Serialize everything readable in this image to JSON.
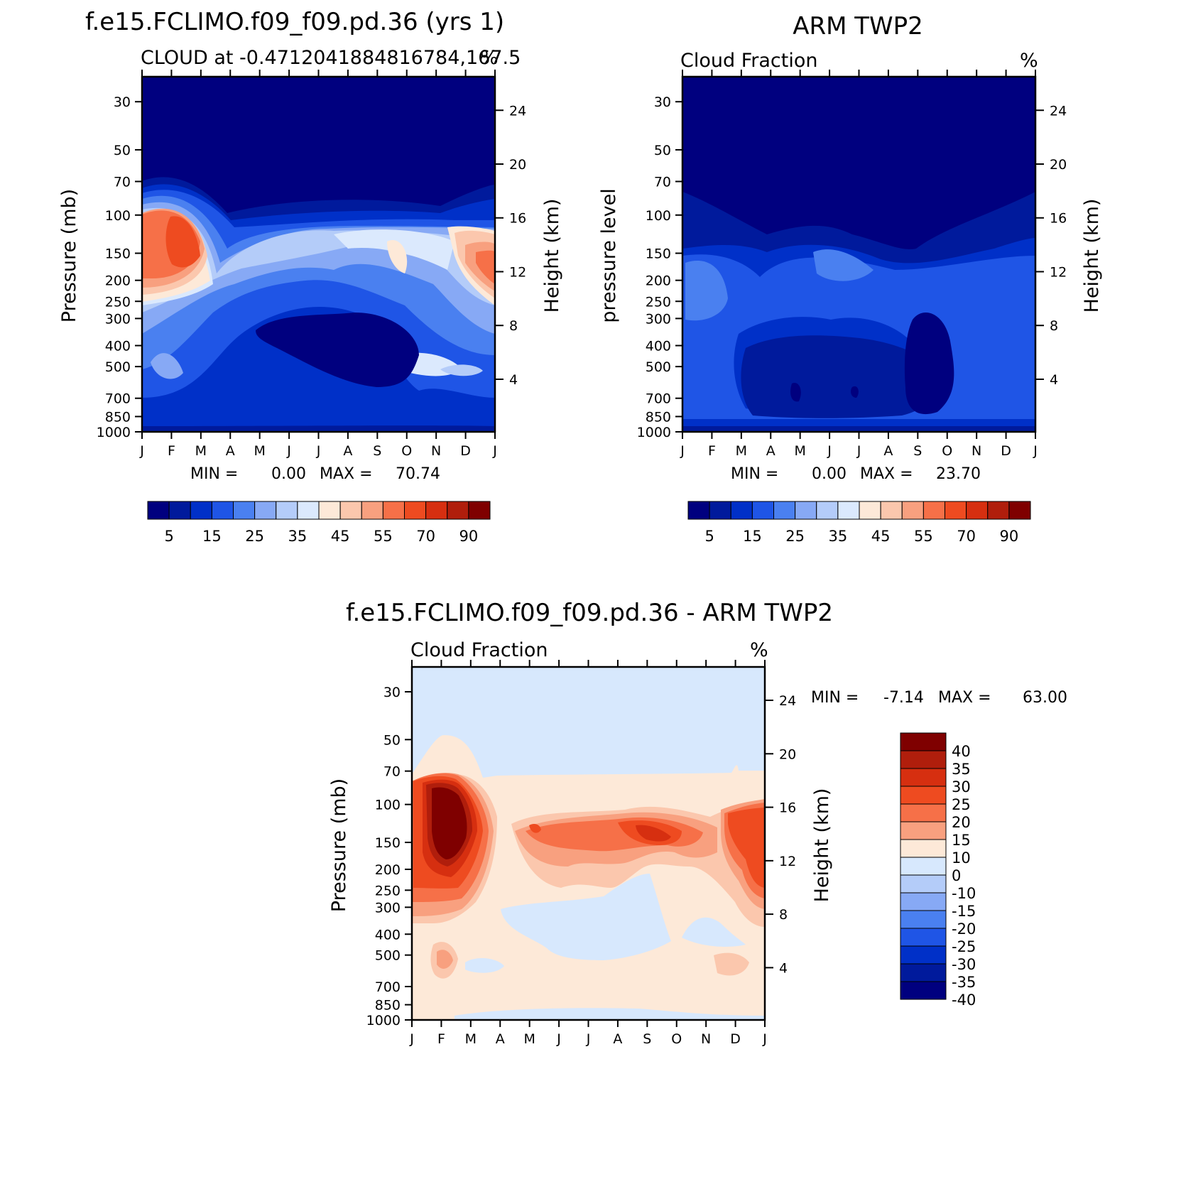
{
  "chart_data": [
    {
      "type": "contour",
      "title": "f.e15.FCLIMO.f09_f09.pd.36 (yrs 1)",
      "subtitle_left": "CLOUD at -0.4712041884816784,167.5",
      "units": "%",
      "xlabel": "",
      "ylabel": "Pressure (mb)",
      "ylabel_right": "Height (km)",
      "x_ticks": [
        "J",
        "F",
        "M",
        "A",
        "M",
        "J",
        "J",
        "A",
        "S",
        "O",
        "N",
        "D",
        "J"
      ],
      "y_ticks": [
        "30",
        "50",
        "70",
        "100",
        "150",
        "200",
        "250",
        "300",
        "400",
        "500",
        "700",
        "850",
        "1000"
      ],
      "y_right_ticks": [
        "24",
        "20",
        "16",
        "12",
        "8",
        "4"
      ],
      "stats": {
        "min_label": "MIN =",
        "min": "0.00",
        "max_label": "MAX =",
        "max": "70.74"
      },
      "colorbar_labels": [
        "5",
        "15",
        "25",
        "35",
        "45",
        "55",
        "70",
        "90"
      ],
      "features": [
        {
          "name": "upper-tropospheric cloud maximum Feb-Mar",
          "pressure_mb": 150,
          "month": "F-M",
          "value_approx": 70
        },
        {
          "name": "secondary maximum Dec",
          "pressure_mb": 200,
          "month": "D",
          "value_approx": 55
        },
        {
          "name": "mid-troposphere minimum",
          "pressure_mb": 450,
          "month": "M-S",
          "value_approx": 3
        }
      ]
    },
    {
      "type": "contour",
      "title": "ARM TWP2",
      "subtitle_left": "Cloud Fraction",
      "units": "%",
      "xlabel": "",
      "ylabel": "pressure level",
      "ylabel_right": "Height (km)",
      "x_ticks": [
        "J",
        "F",
        "M",
        "A",
        "M",
        "J",
        "J",
        "A",
        "S",
        "O",
        "N",
        "D",
        "J"
      ],
      "y_ticks": [
        "30",
        "50",
        "70",
        "100",
        "150",
        "200",
        "250",
        "300",
        "400",
        "500",
        "700",
        "850",
        "1000"
      ],
      "y_right_ticks": [
        "24",
        "20",
        "16",
        "12",
        "8",
        "4"
      ],
      "stats": {
        "min_label": "MIN =",
        "min": "0.00",
        "max_label": "MAX =",
        "max": "23.70"
      },
      "colorbar_labels": [
        "5",
        "15",
        "25",
        "35",
        "45",
        "55",
        "70",
        "90"
      ]
    },
    {
      "type": "contour",
      "title": "f.e15.FCLIMO.f09_f09.pd.36 - ARM TWP2",
      "subtitle_left": "Cloud Fraction",
      "units": "%",
      "xlabel": "",
      "ylabel": "Pressure (mb)",
      "ylabel_right": "Height (km)",
      "x_ticks": [
        "J",
        "F",
        "M",
        "A",
        "M",
        "J",
        "J",
        "A",
        "S",
        "O",
        "N",
        "D",
        "J"
      ],
      "y_ticks": [
        "30",
        "50",
        "70",
        "100",
        "150",
        "200",
        "250",
        "300",
        "400",
        "500",
        "700",
        "850",
        "1000"
      ],
      "y_right_ticks": [
        "24",
        "20",
        "16",
        "12",
        "8",
        "4"
      ],
      "stats": {
        "min_label": "MIN =",
        "min": "-7.14",
        "max_label": "MAX =",
        "max": "63.00"
      },
      "colorbar_labels": [
        "40",
        "35",
        "30",
        "25",
        "20",
        "15",
        "10",
        "0",
        "-10",
        "-15",
        "-20",
        "-25",
        "-30",
        "-35",
        "-40"
      ]
    }
  ],
  "colors": {
    "seq": [
      "#00007f",
      "#001a9c",
      "#0030c8",
      "#1f55e6",
      "#4a80f0",
      "#87a9f5",
      "#b4ccf9",
      "#dbe9fd",
      "#fde9d8",
      "#fbc7ad",
      "#f8a07f",
      "#f67048",
      "#ee4b20",
      "#d62f10",
      "#b01e0c",
      "#7f0000"
    ],
    "diff": [
      "#7f0000",
      "#b01e0c",
      "#d62f10",
      "#ee4b20",
      "#f67048",
      "#f8a07f",
      "#fde9d8",
      "#d7e8fd",
      "#b4ccf9",
      "#87a9f5",
      "#4a80f0",
      "#1f55e6",
      "#0030c8",
      "#001a9c",
      "#00007f"
    ]
  }
}
